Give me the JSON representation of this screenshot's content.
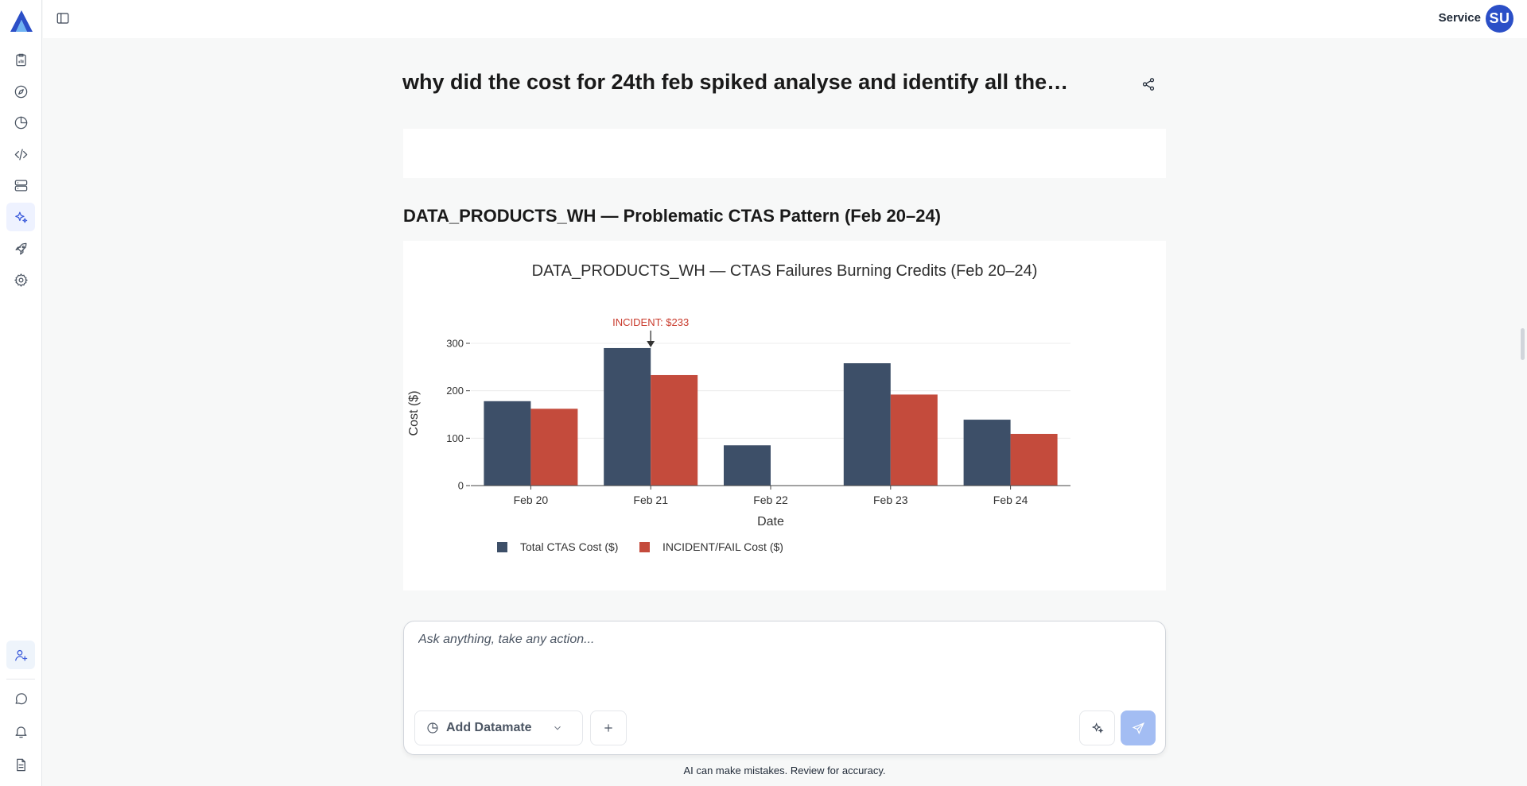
{
  "sidebar": {
    "logo": "app-logo",
    "items": [
      {
        "name": "reports-icon",
        "active": false
      },
      {
        "name": "compass-icon",
        "active": false
      },
      {
        "name": "pie-chart-icon",
        "active": false
      },
      {
        "name": "code-icon",
        "active": false
      },
      {
        "name": "server-icon",
        "active": false
      },
      {
        "name": "sparkles-icon",
        "active": true
      },
      {
        "name": "rocket-icon",
        "active": false
      },
      {
        "name": "gear-icon",
        "active": false
      }
    ],
    "bottom_items": [
      {
        "name": "add-user-icon"
      },
      {
        "name": "chat-icon"
      },
      {
        "name": "bell-icon"
      },
      {
        "name": "document-icon"
      }
    ]
  },
  "header": {
    "user_name": "Service",
    "avatar_initials": "SU"
  },
  "main": {
    "title": "why did the cost for 24th feb spiked analyse and identify all the…",
    "section_title": "DATA_PRODUCTS_WH — Problematic CTAS Pattern (Feb 20–24)"
  },
  "chart_data": {
    "type": "bar",
    "title": "DATA_PRODUCTS_WH — CTAS Failures Burning Credits (Feb 20–24)",
    "xlabel": "Date",
    "ylabel": "Cost ($)",
    "categories": [
      "Feb 20",
      "Feb 21",
      "Feb 22",
      "Feb 23",
      "Feb 24"
    ],
    "ylim": [
      0,
      300
    ],
    "yticks": [
      0,
      100,
      200,
      300
    ],
    "grid": true,
    "legend_position": "bottom-left",
    "series": [
      {
        "name": "Total CTAS Cost ($)",
        "color": "#3d4f68",
        "values": [
          178,
          290,
          85,
          258,
          139
        ]
      },
      {
        "name": "INCIDENT/FAIL Cost ($)",
        "color": "#c44b3c",
        "values": [
          162,
          233,
          0,
          192,
          109
        ]
      }
    ],
    "annotation": {
      "text": "INCIDENT: $233",
      "category": "Feb 21",
      "value": 290,
      "color": "#c93a2c"
    }
  },
  "composer": {
    "placeholder": "Ask anything, take any action...",
    "add_datamate_label": "Add Datamate"
  },
  "footer": {
    "disclaimer": "AI can make mistakes. Review for accuracy."
  }
}
